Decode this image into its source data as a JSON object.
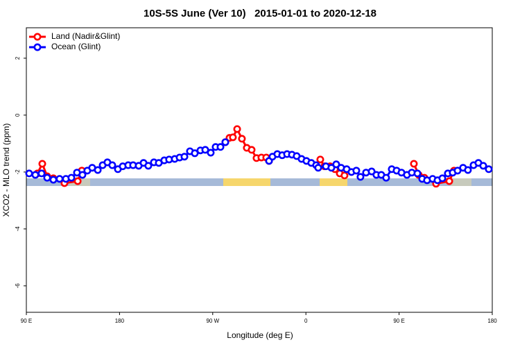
{
  "chart_data": {
    "type": "line",
    "title": "10S-5S June (Ver 10)   2015-01-01 to 2020-12-18",
    "xlabel": "Longitude (deg E)",
    "ylabel": "XCO2 - MLO trend (ppm)",
    "xlim": [
      90,
      540
    ],
    "ylim": [
      -6.93,
      3.07
    ],
    "xticks": [
      {
        "value": 90,
        "label": "90 E"
      },
      180,
      {
        "value": 270,
        "label": "90 W"
      },
      {
        "value": 360,
        "label": "0"
      },
      {
        "value": 450,
        "label": "90 E"
      },
      {
        "value": 540,
        "label": "180"
      }
    ],
    "yticks": [
      -6,
      -4,
      -2,
      0,
      2
    ],
    "legend": "topleft",
    "series": [
      {
        "name": "Land (Nadir&Glint)",
        "color": "#ff0000",
        "x": [
          100.7,
          105.4,
          110.1,
          116.1,
          126.8,
          139.6,
          143.6,
          200,
          282.2,
          286.2,
          289.5,
          293.6,
          298.2,
          302.9,
          307.6,
          312.3,
          317.0,
          321.7,
          324.4,
          340,
          373.9,
          377.9,
          383.3,
          388.0,
          392.7,
          397.3,
          420,
          464.3,
          469.0,
          474.4,
          485.7,
          498.5,
          503.1
        ],
        "values": [
          -2.05,
          -1.71,
          -2.15,
          -2.22,
          -2.39,
          -2.32,
          -1.95,
          null,
          -0.95,
          -0.8,
          -0.78,
          -0.49,
          -0.83,
          -1.15,
          -1.22,
          -1.51,
          -1.49,
          -1.49,
          -1.61,
          null,
          -1.56,
          -1.8,
          -1.8,
          -1.9,
          -2.05,
          -2.12,
          null,
          -1.71,
          -2.1,
          -2.2,
          -2.41,
          -2.32,
          -1.95
        ]
      },
      {
        "name": "Ocean (Glint)",
        "color": "#0000ff",
        "x": [
          92.7,
          98.7,
          104.7,
          110.1,
          116.1,
          122.1,
          128.2,
          133.5,
          138.9,
          144.2,
          148.9,
          153.6,
          159.0,
          163.7,
          168.3,
          173.0,
          178.4,
          183.1,
          188.4,
          193.1,
          198.5,
          203.2,
          207.8,
          213.2,
          217.9,
          223.2,
          227.9,
          233.3,
          238.0,
          242.7,
          248.0,
          252.7,
          258.1,
          262.8,
          268.1,
          272.8,
          277.5,
          282.2,
          300,
          324.4,
          327.7,
          332.4,
          337.1,
          341.8,
          346.5,
          351.1,
          355.8,
          360.5,
          365.2,
          369.9,
          371.9,
          379.3,
          384.6,
          389.3,
          394.0,
          399.4,
          404.0,
          408.7,
          412.7,
          418.1,
          423.5,
          428.1,
          432.8,
          437.5,
          442.9,
          447.6,
          452.3,
          457.6,
          462.3,
          467.7,
          472.3,
          477.0,
          482.4,
          487.1,
          491.8,
          497.1,
          501.8,
          506.5,
          511.8,
          516.5,
          521.9,
          526.6,
          531.3,
          536.6
        ],
        "values": [
          -2.05,
          -2.1,
          -2.05,
          -2.2,
          -2.27,
          -2.24,
          -2.24,
          -2.2,
          -2.02,
          -2.1,
          -1.95,
          -1.85,
          -1.93,
          -1.76,
          -1.66,
          -1.76,
          -1.9,
          -1.8,
          -1.76,
          -1.76,
          -1.78,
          -1.68,
          -1.78,
          -1.66,
          -1.68,
          -1.59,
          -1.56,
          -1.54,
          -1.49,
          -1.46,
          -1.27,
          -1.34,
          -1.24,
          -1.22,
          -1.32,
          -1.12,
          -1.12,
          -0.95,
          null,
          -1.61,
          -1.46,
          -1.37,
          -1.41,
          -1.37,
          -1.39,
          -1.44,
          -1.54,
          -1.61,
          -1.68,
          -1.76,
          -1.85,
          -1.8,
          -1.85,
          -1.73,
          -1.85,
          -1.9,
          -2.0,
          -1.95,
          -2.17,
          -2.02,
          -1.98,
          -2.1,
          -2.1,
          -2.2,
          -1.9,
          -1.95,
          -2.02,
          -2.1,
          -2.02,
          -2.05,
          -2.24,
          -2.29,
          -2.24,
          -2.29,
          -2.22,
          -2.05,
          -2.02,
          -1.95,
          -1.85,
          -1.93,
          -1.76,
          -1.68,
          -1.78,
          -1.9
        ]
      }
    ]
  }
}
